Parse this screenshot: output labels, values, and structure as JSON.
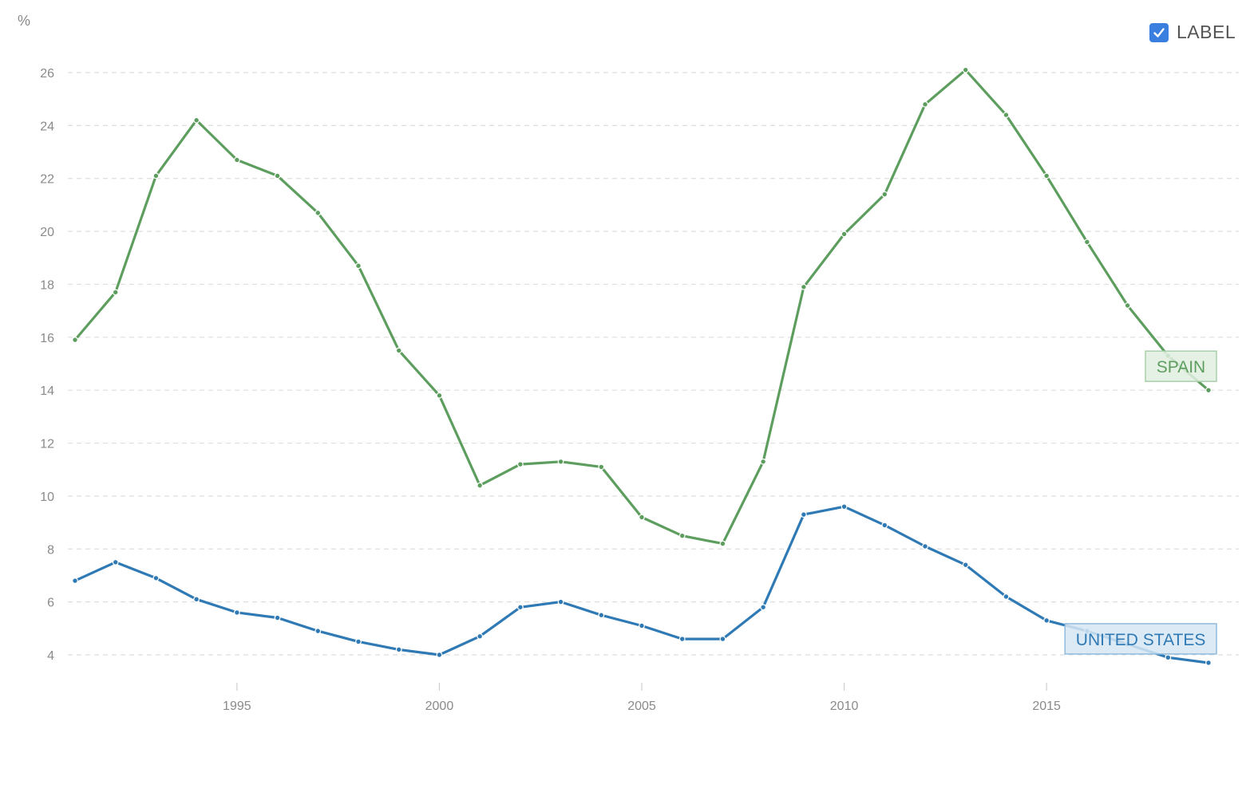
{
  "label_toggle": {
    "text": "LABEL",
    "checked": true
  },
  "chart_data": {
    "type": "line",
    "ylabel": "%",
    "ylim": [
      3,
      27
    ],
    "xlim": [
      1991,
      2019
    ],
    "yticks": [
      "4",
      "6",
      "8",
      "10",
      "12",
      "14",
      "16",
      "18",
      "20",
      "22",
      "24",
      "26"
    ],
    "xticks": [
      "1995",
      "2000",
      "2005",
      "2010",
      "2015"
    ],
    "grid": true,
    "x": [
      1991,
      1992,
      1993,
      1994,
      1995,
      1996,
      1997,
      1998,
      1999,
      2000,
      2001,
      2002,
      2003,
      2004,
      2005,
      2006,
      2007,
      2008,
      2009,
      2010,
      2011,
      2012,
      2013,
      2014,
      2015,
      2016,
      2017,
      2018,
      2019
    ],
    "series": [
      {
        "name": "SPAIN",
        "color": "#5d9e5f",
        "label_bg": "#e2efe2",
        "label_border": "#a9d0aa",
        "values": [
          15.9,
          17.7,
          22.1,
          24.2,
          22.7,
          22.1,
          20.7,
          18.7,
          15.5,
          13.8,
          10.4,
          11.2,
          11.3,
          11.1,
          9.2,
          8.5,
          8.2,
          11.3,
          17.9,
          19.9,
          21.4,
          24.8,
          26.1,
          24.4,
          22.1,
          19.6,
          17.2,
          15.3,
          14.0
        ]
      },
      {
        "name": "UNITED STATES",
        "color": "#2f7ab5",
        "label_bg": "#d6e6f3",
        "label_border": "#8fbadc",
        "values": [
          6.8,
          7.5,
          6.9,
          6.1,
          5.6,
          5.4,
          4.9,
          4.5,
          4.2,
          4.0,
          4.7,
          5.8,
          6.0,
          5.5,
          5.1,
          4.6,
          4.6,
          5.8,
          9.3,
          9.6,
          8.9,
          8.1,
          7.4,
          6.2,
          5.3,
          4.9,
          4.4,
          3.9,
          3.7
        ]
      }
    ]
  }
}
